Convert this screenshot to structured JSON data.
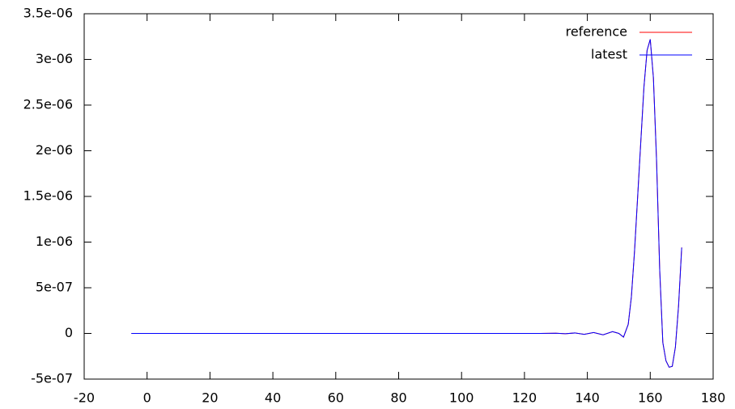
{
  "chart_data": {
    "type": "line",
    "x": [
      -5,
      120,
      125,
      130,
      133,
      136,
      139,
      142,
      145,
      148,
      150,
      151.5,
      153,
      154,
      155,
      156,
      157,
      158,
      159,
      160,
      161,
      162,
      163,
      164,
      165,
      166,
      167,
      168,
      169,
      170
    ],
    "series": [
      {
        "name": "reference",
        "color": "#ff0000",
        "values": [
          0,
          0,
          0,
          2e-09,
          -3e-09,
          5e-09,
          -1e-08,
          1e-08,
          -1.5e-08,
          2e-08,
          0,
          -4e-08,
          1e-07,
          4e-07,
          9e-07,
          1.5e-06,
          2.1e-06,
          2.7e-06,
          3.1e-06,
          3.22e-06,
          2.8e-06,
          1.9e-06,
          7e-07,
          -1e-07,
          -3e-07,
          -3.7e-07,
          -3.6e-07,
          -1.5e-07,
          3e-07,
          9.4e-07
        ]
      },
      {
        "name": "latest",
        "color": "#0000ff",
        "values": [
          0,
          0,
          0,
          2e-09,
          -3e-09,
          5e-09,
          -1e-08,
          1e-08,
          -1.5e-08,
          2e-08,
          0,
          -4e-08,
          1e-07,
          4e-07,
          9e-07,
          1.5e-06,
          2.1e-06,
          2.7e-06,
          3.1e-06,
          3.22e-06,
          2.8e-06,
          1.9e-06,
          7e-07,
          -1e-07,
          -3e-07,
          -3.7e-07,
          -3.6e-07,
          -1.5e-07,
          3e-07,
          9.4e-07
        ]
      }
    ],
    "xlim": [
      -20,
      180
    ],
    "xticks": [
      -20,
      0,
      20,
      40,
      60,
      80,
      100,
      120,
      140,
      160,
      180
    ],
    "ylim": [
      -5e-07,
      3.5e-06
    ],
    "yticks": [
      {
        "value": -5e-07,
        "label": "-5e-07"
      },
      0,
      {
        "value": 5e-07,
        "label": "5e-07"
      },
      {
        "value": 1e-06,
        "label": "1e-06"
      },
      {
        "value": 1.5e-06,
        "label": "1.5e-06"
      },
      {
        "value": 2e-06,
        "label": "2e-06"
      },
      {
        "value": 2.5e-06,
        "label": "2.5e-06"
      },
      {
        "value": 3e-06,
        "label": "3e-06"
      },
      {
        "value": 3.5e-06,
        "label": "3.5e-06"
      }
    ],
    "legend": "top right"
  }
}
